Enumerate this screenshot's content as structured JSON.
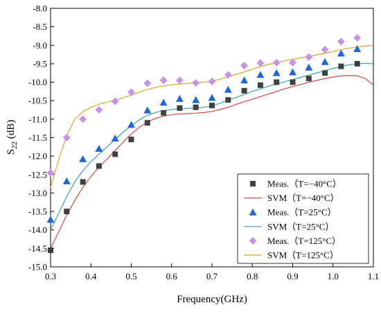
{
  "chart_data": {
    "type": "scatter",
    "xlabel": "Frequency(GHz)",
    "ylabel": "S22 (dB)",
    "ylabel_parts": {
      "main": "S",
      "sub": "22",
      "unit": " (dB)"
    },
    "xlim": [
      0.3,
      1.1
    ],
    "ylim": [
      -15.0,
      -8.0
    ],
    "x_ticks": [
      0.3,
      0.4,
      0.5,
      0.6,
      0.7,
      0.8,
      0.9,
      1.0,
      1.1
    ],
    "x_tick_labels": [
      "0.3",
      "0.4",
      "0.5",
      "0.6",
      "0.7",
      "0.8",
      "0.9",
      "1.0",
      "1.1"
    ],
    "y_ticks": [
      -15.0,
      -14.5,
      -14.0,
      -13.5,
      -13.0,
      -12.5,
      -12.0,
      -11.5,
      -11.0,
      -10.5,
      -10.0,
      -9.5,
      -9.0,
      -8.5,
      -8.0
    ],
    "y_tick_labels": [
      "-15.0",
      "-14.5",
      "-14.0",
      "-13.5",
      "-13.0",
      "-12.5",
      "-12.0",
      "-11.5",
      "-11.0",
      "-10.5",
      "-10.0",
      "-9.5",
      "-9.0",
      "-8.5",
      "-8.0"
    ],
    "grid": false,
    "legend_position": "bottom-right",
    "series": [
      {
        "name": "Meas.（T=−40°C）",
        "kind": "markers",
        "marker": "square",
        "color": "#404040",
        "x": [
          0.3,
          0.34,
          0.38,
          0.42,
          0.46,
          0.5,
          0.54,
          0.58,
          0.62,
          0.66,
          0.7,
          0.74,
          0.78,
          0.82,
          0.86,
          0.9,
          0.94,
          0.98,
          1.02,
          1.06
        ],
        "y": [
          -14.55,
          -13.5,
          -12.7,
          -12.27,
          -11.95,
          -11.55,
          -11.1,
          -10.83,
          -10.7,
          -10.68,
          -10.63,
          -10.48,
          -10.23,
          -10.08,
          -10.0,
          -10.0,
          -9.9,
          -9.75,
          -9.57,
          -9.5
        ]
      },
      {
        "name": "SVM（T=−40°C）",
        "kind": "line",
        "color": "#e0473c",
        "x": [
          0.3,
          0.32,
          0.34,
          0.36,
          0.38,
          0.4,
          0.42,
          0.44,
          0.46,
          0.48,
          0.5,
          0.52,
          0.54,
          0.56,
          0.58,
          0.6,
          0.62,
          0.64,
          0.66,
          0.68,
          0.7,
          0.72,
          0.74,
          0.76,
          0.78,
          0.8,
          0.82,
          0.84,
          0.86,
          0.88,
          0.9,
          0.92,
          0.94,
          0.96,
          0.98,
          1.0,
          1.02,
          1.04,
          1.06,
          1.08,
          1.1
        ],
        "y": [
          -14.5,
          -14.05,
          -13.6,
          -13.2,
          -12.85,
          -12.55,
          -12.3,
          -12.08,
          -11.85,
          -11.62,
          -11.4,
          -11.22,
          -11.08,
          -10.98,
          -10.92,
          -10.88,
          -10.86,
          -10.85,
          -10.84,
          -10.82,
          -10.79,
          -10.74,
          -10.68,
          -10.6,
          -10.53,
          -10.46,
          -10.39,
          -10.32,
          -10.25,
          -10.18,
          -10.12,
          -10.06,
          -10.0,
          -9.95,
          -9.9,
          -9.86,
          -9.83,
          -9.82,
          -9.83,
          -9.9,
          -10.08
        ]
      },
      {
        "name": "Meas.（T=25°C）",
        "kind": "markers",
        "marker": "triangle",
        "color": "#2166d9",
        "x": [
          0.3,
          0.34,
          0.38,
          0.42,
          0.46,
          0.5,
          0.54,
          0.58,
          0.62,
          0.66,
          0.7,
          0.74,
          0.78,
          0.82,
          0.86,
          0.9,
          0.94,
          0.98,
          1.02,
          1.06
        ],
        "y": [
          -13.72,
          -12.68,
          -12.08,
          -11.8,
          -11.52,
          -11.15,
          -10.76,
          -10.55,
          -10.45,
          -10.48,
          -10.42,
          -10.2,
          -9.95,
          -9.8,
          -9.75,
          -9.73,
          -9.6,
          -9.45,
          -9.22,
          -9.1
        ]
      },
      {
        "name": "SVM（T=25°C）",
        "kind": "line",
        "color": "#38a3a8",
        "x": [
          0.3,
          0.32,
          0.34,
          0.36,
          0.38,
          0.4,
          0.42,
          0.44,
          0.46,
          0.48,
          0.5,
          0.52,
          0.54,
          0.56,
          0.58,
          0.6,
          0.62,
          0.64,
          0.66,
          0.68,
          0.7,
          0.72,
          0.74,
          0.76,
          0.78,
          0.8,
          0.82,
          0.84,
          0.86,
          0.88,
          0.9,
          0.92,
          0.94,
          0.96,
          0.98,
          1.0,
          1.02,
          1.04,
          1.06,
          1.08,
          1.1
        ],
        "y": [
          -14.0,
          -13.55,
          -13.1,
          -12.7,
          -12.4,
          -12.15,
          -11.95,
          -11.75,
          -11.55,
          -11.35,
          -11.18,
          -11.02,
          -10.9,
          -10.82,
          -10.77,
          -10.74,
          -10.72,
          -10.71,
          -10.7,
          -10.68,
          -10.64,
          -10.57,
          -10.49,
          -10.41,
          -10.33,
          -10.25,
          -10.18,
          -10.11,
          -10.05,
          -9.99,
          -9.93,
          -9.87,
          -9.81,
          -9.75,
          -9.69,
          -9.63,
          -9.57,
          -9.53,
          -9.5,
          -9.49,
          -9.5
        ]
      },
      {
        "name": "Meas.（T=125°C）",
        "kind": "markers",
        "marker": "diamond",
        "color": "#c893e6",
        "x": [
          0.3,
          0.34,
          0.38,
          0.42,
          0.46,
          0.5,
          0.54,
          0.58,
          0.62,
          0.66,
          0.7,
          0.74,
          0.78,
          0.82,
          0.86,
          0.9,
          0.94,
          0.98,
          1.02,
          1.06
        ],
        "y": [
          -12.45,
          -11.5,
          -11.0,
          -10.75,
          -10.52,
          -10.27,
          -10.03,
          -9.95,
          -9.95,
          -10.02,
          -9.98,
          -9.8,
          -9.55,
          -9.48,
          -9.47,
          -9.47,
          -9.32,
          -9.12,
          -8.9,
          -8.8
        ]
      },
      {
        "name": "SVM（T=125°C）",
        "kind": "line",
        "color": "#e0a126",
        "x": [
          0.3,
          0.32,
          0.34,
          0.36,
          0.38,
          0.4,
          0.42,
          0.44,
          0.46,
          0.48,
          0.5,
          0.52,
          0.54,
          0.56,
          0.58,
          0.6,
          0.62,
          0.64,
          0.66,
          0.68,
          0.7,
          0.72,
          0.74,
          0.76,
          0.78,
          0.8,
          0.82,
          0.84,
          0.86,
          0.88,
          0.9,
          0.92,
          0.94,
          0.96,
          0.98,
          1.0,
          1.02,
          1.04,
          1.06,
          1.08,
          1.1
        ],
        "y": [
          -12.85,
          -12.1,
          -11.45,
          -11.0,
          -10.8,
          -10.68,
          -10.6,
          -10.54,
          -10.48,
          -10.42,
          -10.35,
          -10.27,
          -10.2,
          -10.14,
          -10.1,
          -10.07,
          -10.05,
          -10.03,
          -10.02,
          -10.0,
          -9.97,
          -9.92,
          -9.86,
          -9.79,
          -9.72,
          -9.65,
          -9.58,
          -9.52,
          -9.47,
          -9.42,
          -9.38,
          -9.34,
          -9.3,
          -9.26,
          -9.22,
          -9.17,
          -9.12,
          -9.08,
          -9.05,
          -9.02,
          -9.0
        ]
      }
    ]
  }
}
